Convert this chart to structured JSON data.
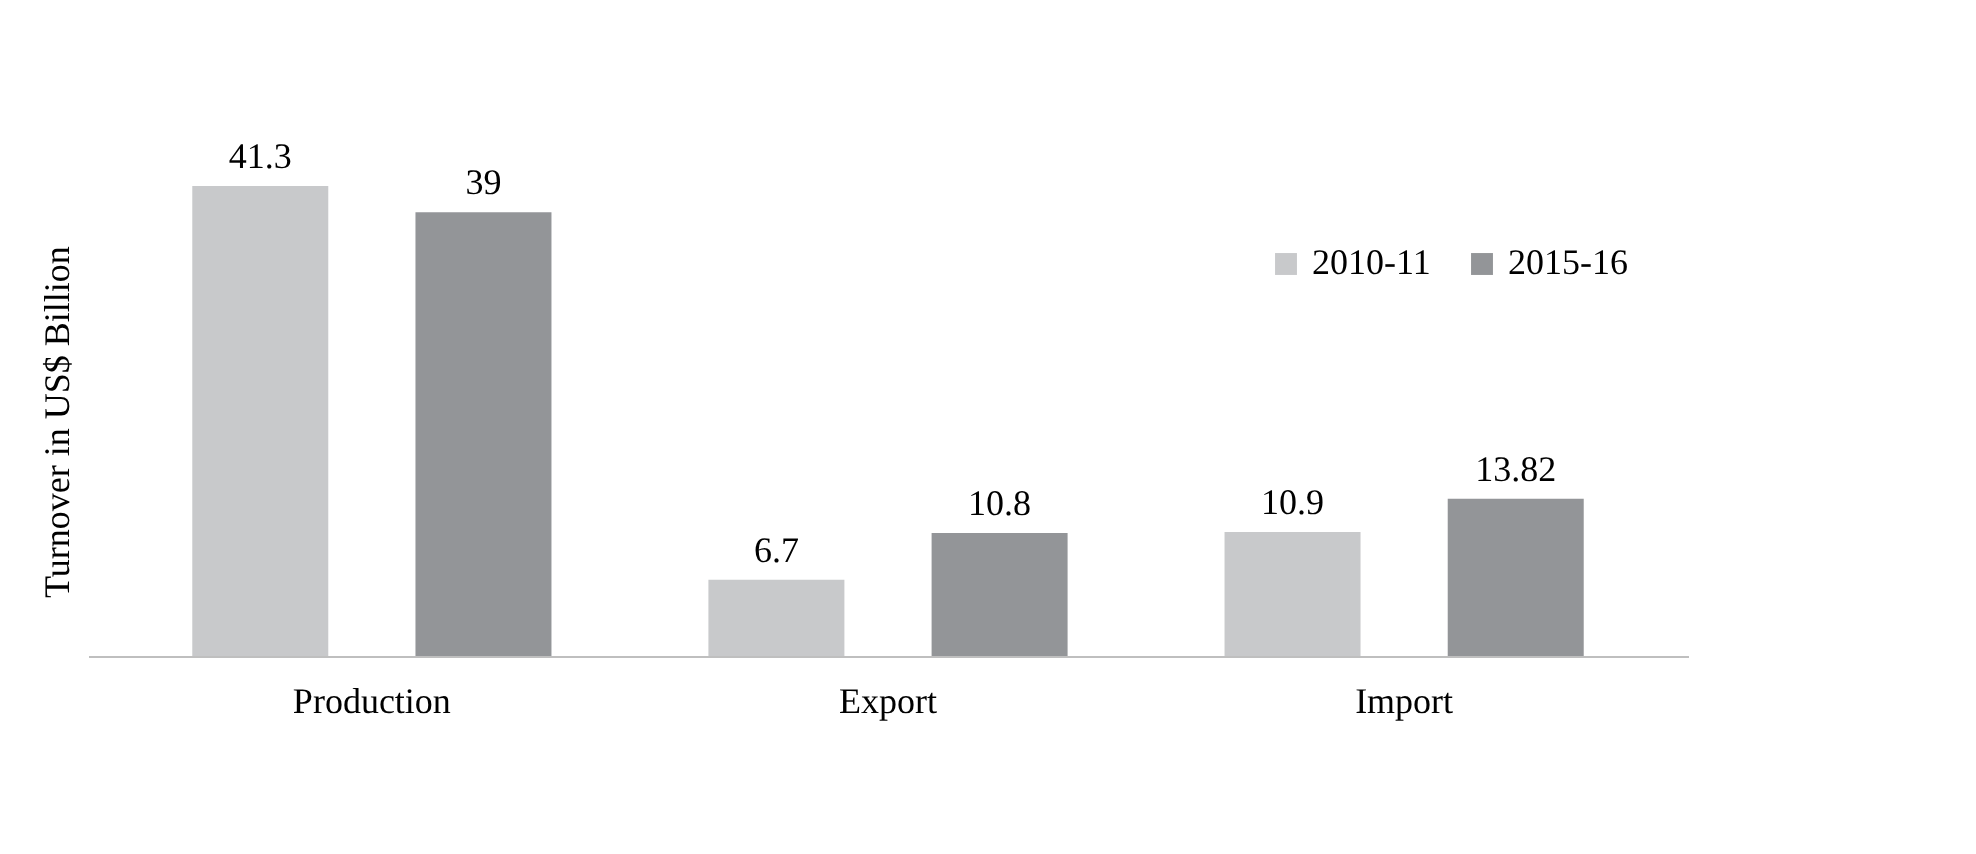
{
  "chart_data": {
    "type": "bar",
    "ylabel": "Turnover in US$ Billion",
    "categories": [
      "Production",
      "Export",
      "Import"
    ],
    "series": [
      {
        "name": "2010-11",
        "color": "#c8c9cb",
        "values": [
          41.3,
          6.7,
          10.9
        ]
      },
      {
        "name": "2015-16",
        "color": "#939598",
        "values": [
          39,
          10.8,
          13.82
        ]
      }
    ],
    "data_labels": true,
    "legend": "top right",
    "grid": false
  }
}
